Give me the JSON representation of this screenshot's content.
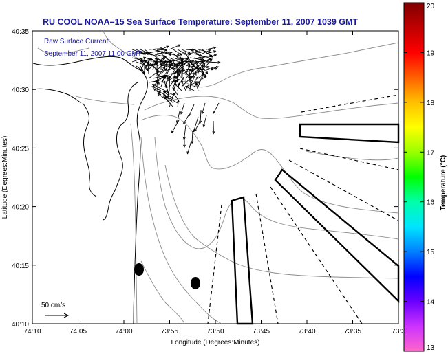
{
  "title": "RU COOL  NOAA–15  Sea Surface Temperature:  September 11, 2007 1039 GMT",
  "annotation": {
    "line1": "Raw Surface Current:",
    "line2": "September 11, 2007 11:00 GMT"
  },
  "axes": {
    "xlabel": "Longitude (Degrees:Minutes)",
    "ylabel": "Latitude (Degrees:Minutes)",
    "xticks": [
      "74:10",
      "74:05",
      "74:00",
      "73:55",
      "73:50",
      "73:45",
      "73:40",
      "73:35",
      "73:3"
    ],
    "yticks": [
      "40:35",
      "40:30",
      "40:25",
      "40:20",
      "40:15",
      "40:10"
    ]
  },
  "scale_vector": {
    "label": "50 cm/s"
  },
  "colorbar": {
    "label": "Temperature (°C)",
    "ticks": [
      "20",
      "19",
      "18",
      "17",
      "16",
      "15",
      "14",
      "13"
    ],
    "range": [
      13,
      20
    ],
    "colors": [
      "#ff66cc",
      "#cc33ff",
      "#6a00ff",
      "#0000ff",
      "#0080ff",
      "#00e5ff",
      "#00ffaa",
      "#00ff00",
      "#9aff00",
      "#ffff00",
      "#ffc000",
      "#ff6000",
      "#ff0000",
      "#c00000",
      "#800000"
    ]
  }
}
